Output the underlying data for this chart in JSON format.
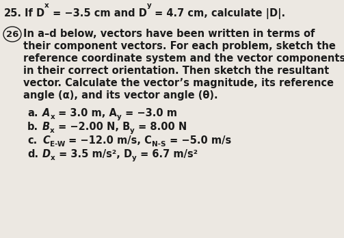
{
  "background_color": "#ece8e2",
  "font_color": "#1a1a1a",
  "fontsize_main": 10.5,
  "fontsize_sub": 7.5,
  "line25": {
    "num": "25.",
    "parts": [
      {
        "text": "If D",
        "style": "bold",
        "super": false
      },
      {
        "text": "x",
        "style": "bold",
        "sub": true
      },
      {
        "text": " = −3.5 cm and D",
        "style": "bold",
        "super": false
      },
      {
        "text": "y",
        "style": "bold",
        "sub": true
      },
      {
        "text": " = 4.7 cm, calculate |D|.",
        "style": "bold",
        "super": false
      }
    ]
  },
  "line26_body": [
    "In a–d below, vectors have been written in terms of",
    "their component vectors. For each problem, sketch the",
    "reference coordinate system and the vector components",
    "in their correct orientation. Then sketch the resultant",
    "vector. Calculate the vector’s magnitude, its reference",
    "angle (α), and its vector angle (θ)."
  ],
  "items": [
    {
      "label": "a.",
      "parts": [
        {
          "text": "A",
          "bold": true,
          "italic": true,
          "sub": false
        },
        {
          "text": "x",
          "bold": true,
          "italic": false,
          "sub": true
        },
        {
          "text": " = 3.0 m, A",
          "bold": true,
          "italic": false,
          "sub": false
        },
        {
          "text": "y",
          "bold": true,
          "italic": false,
          "sub": true
        },
        {
          "text": " = −3.0 m",
          "bold": true,
          "italic": false,
          "sub": false
        }
      ]
    },
    {
      "label": "b.",
      "parts": [
        {
          "text": "B",
          "bold": true,
          "italic": true,
          "sub": false
        },
        {
          "text": "x",
          "bold": true,
          "italic": false,
          "sub": true
        },
        {
          "text": " = −2.00 N, B",
          "bold": true,
          "italic": false,
          "sub": false
        },
        {
          "text": "y",
          "bold": true,
          "italic": false,
          "sub": true
        },
        {
          "text": " = 8.00 N",
          "bold": true,
          "italic": false,
          "sub": false
        }
      ]
    },
    {
      "label": "c.",
      "parts": [
        {
          "text": "C",
          "bold": true,
          "italic": true,
          "sub": false
        },
        {
          "text": "E-W",
          "bold": true,
          "italic": false,
          "sub": true
        },
        {
          "text": " = −12.0 m/s, C",
          "bold": true,
          "italic": false,
          "sub": false
        },
        {
          "text": "N-S",
          "bold": true,
          "italic": false,
          "sub": true
        },
        {
          "text": " = −5.0 m/s",
          "bold": true,
          "italic": false,
          "sub": false
        }
      ]
    },
    {
      "label": "d.",
      "parts": [
        {
          "text": "D",
          "bold": true,
          "italic": true,
          "sub": false
        },
        {
          "text": "x",
          "bold": true,
          "italic": false,
          "sub": true
        },
        {
          "text": " = 3.5 m/s², D",
          "bold": true,
          "italic": false,
          "sub": false
        },
        {
          "text": "y",
          "bold": true,
          "italic": false,
          "sub": true
        },
        {
          "text": " = 6.7 m/s²",
          "bold": true,
          "italic": false,
          "sub": false
        }
      ]
    }
  ]
}
